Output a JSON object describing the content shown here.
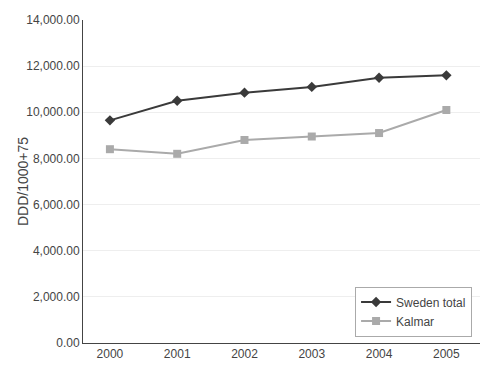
{
  "chart_data": {
    "type": "line",
    "x": [
      2000,
      2001,
      2002,
      2003,
      2004,
      2005
    ],
    "series": [
      {
        "name": "Sweden total",
        "color": "#3a3a3a",
        "marker": "diamond",
        "values": [
          9650,
          10500,
          10850,
          11100,
          11500,
          11600
        ]
      },
      {
        "name": "Kalmar",
        "color": "#aaaaaa",
        "marker": "square",
        "values": [
          8400,
          8200,
          8800,
          8950,
          9100,
          10100
        ]
      }
    ],
    "y_label": "DDD/1000+75",
    "xlim": [
      1999.6,
      2005.5
    ],
    "xticks": [
      2000,
      2001,
      2002,
      2003,
      2004,
      2005
    ],
    "ylim": [
      0,
      14000
    ],
    "yticks": [
      {
        "value": 0,
        "label": "0.00"
      },
      {
        "value": 2000,
        "label": "2,000.00"
      },
      {
        "value": 4000,
        "label": "4,000.00"
      },
      {
        "value": 6000,
        "label": "6,000.00"
      },
      {
        "value": 8000,
        "label": "8,000.00"
      },
      {
        "value": 10000,
        "label": "10,000.00"
      },
      {
        "value": 12000,
        "label": "12,000.00"
      },
      {
        "value": 14000,
        "label": "14,000.00"
      }
    ],
    "grid": true,
    "legend": "lower right"
  }
}
